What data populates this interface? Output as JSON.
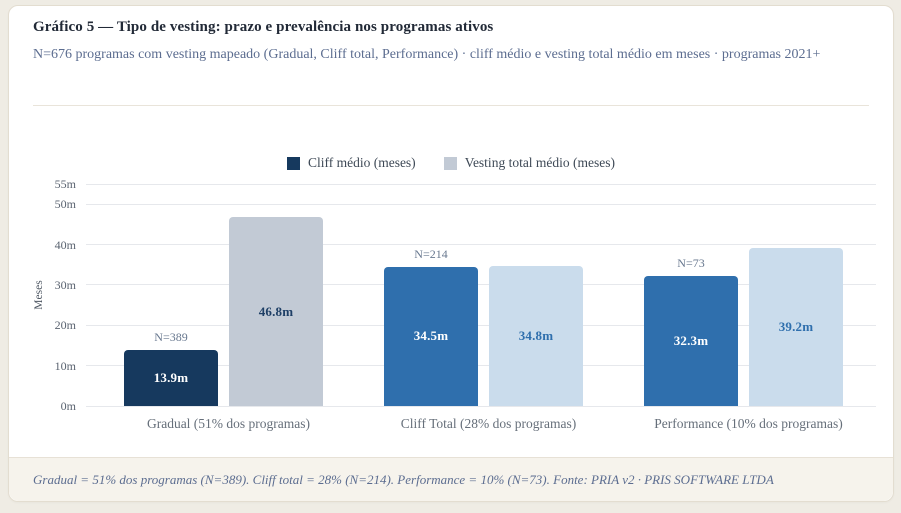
{
  "header": {
    "title": "Gráfico 5 — Tipo de vesting: prazo e prevalência nos programas ativos",
    "subtitle": "N=676 programas com vesting mapeado (Gradual, Cliff total, Performance) · cliff médio e vesting total médio em meses · programas 2021+"
  },
  "chart_data": {
    "type": "bar",
    "title": "Gráfico 5 — Tipo de vesting: prazo e prevalência nos programas ativos",
    "ylabel": "Meses",
    "ylim": [
      0,
      55
    ],
    "yticks": [
      {
        "value": 0,
        "label": "0m"
      },
      {
        "value": 10,
        "label": "10m"
      },
      {
        "value": 20,
        "label": "20m"
      },
      {
        "value": 30,
        "label": "30m"
      },
      {
        "value": 40,
        "label": "40m"
      },
      {
        "value": 50,
        "label": "50m"
      },
      {
        "value": 55,
        "label": "55m"
      }
    ],
    "grid": true,
    "legend_position": "top-center",
    "categories": [
      "Gradual (51% dos programas)",
      "Cliff Total (28% dos programas)",
      "Performance (10% dos programas)"
    ],
    "n_labels": [
      "N=389",
      "N=214",
      "N=73"
    ],
    "series": [
      {
        "name": "Cliff médio (meses)",
        "values": [
          13.9,
          34.5,
          32.3
        ],
        "value_labels": [
          "13.9m",
          "34.5m",
          "32.3m"
        ],
        "bar_colors": [
          "#16395e",
          "#2f6fad",
          "#2f6fad"
        ],
        "value_label_colors": [
          "#ffffff",
          "#ffffff",
          "#ffffff"
        ],
        "legend_color": "#16395e"
      },
      {
        "name": "Vesting total médio (meses)",
        "values": [
          46.8,
          34.8,
          39.2
        ],
        "value_labels": [
          "46.8m",
          "34.8m",
          "39.2m"
        ],
        "bar_colors": [
          "#c2cad5",
          "#cadcec",
          "#cadcec"
        ],
        "value_label_colors": [
          "#1e3f66",
          "#2f6fad",
          "#2f6fad"
        ],
        "legend_color": "#c2cad5"
      }
    ]
  },
  "footer": {
    "text": "Gradual = 51% dos programas (N=389). Cliff total = 28% (N=214). Performance = 10% (N=73). Fonte: PRIA v2 · PRIS SOFTWARE LTDA"
  }
}
